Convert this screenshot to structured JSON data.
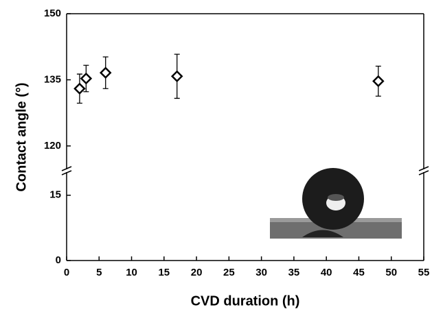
{
  "chart_data": {
    "type": "scatter",
    "xlabel": "CVD duration (h)",
    "ylabel": "Contact angle (°)",
    "x": [
      2,
      3,
      6,
      17,
      48
    ],
    "series": [
      {
        "values": [
          133,
          135.3,
          136.6,
          135.8,
          134.7
        ],
        "errors": [
          3.3,
          3,
          3.6,
          5,
          3.4
        ],
        "color": "#000"
      }
    ],
    "xlim": [
      0,
      55
    ],
    "xticks": [
      0,
      5,
      10,
      15,
      20,
      25,
      30,
      35,
      40,
      45,
      50,
      55
    ],
    "ylim": [
      0,
      150
    ],
    "ybreak": [
      20,
      115
    ],
    "yticks": [
      0,
      15,
      120,
      135,
      150
    ]
  }
}
